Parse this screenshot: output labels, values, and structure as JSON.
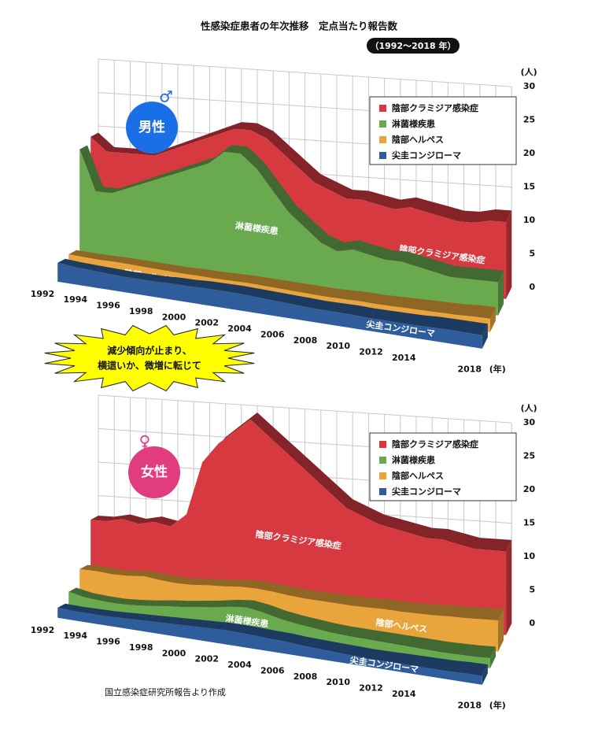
{
  "title": "性感染症患者の年次推移　定点当たり報告数",
  "subtitle": "（1992〜2018 年）",
  "annotation": [
    "減少傾向が止まり、",
    "横這いか、微増に転じて"
  ],
  "source": "国立感染症研究所報告より作成",
  "chart_data": [
    {
      "type": "area3d",
      "title": "男性",
      "y_unit": "(人)",
      "x_unit": "(年)",
      "categories": [
        "1992",
        null,
        "1994",
        null,
        "1996",
        null,
        "1998",
        null,
        "2000",
        null,
        "2002",
        null,
        "2004",
        null,
        "2006",
        null,
        "2008",
        null,
        "2010",
        null,
        "2012",
        null,
        "2014",
        null,
        null,
        null,
        "2018"
      ],
      "ylim": [
        0,
        30
      ],
      "yticks": [
        0,
        5,
        10,
        15,
        20,
        25,
        30
      ],
      "grid": true,
      "legend": "upper right",
      "series": [
        {
          "name": "陰部クラミジア感染症",
          "color": "#d63a40",
          "values": [
            19,
            17,
            17,
            17,
            17,
            18,
            19,
            20,
            21,
            22,
            22,
            21,
            19,
            17,
            15,
            14,
            13,
            13,
            12.5,
            12,
            12.5,
            12,
            11.5,
            11,
            11,
            11.5,
            11.5
          ]
        },
        {
          "name": "淋菌様疾患",
          "color": "#6aaa4f",
          "values": [
            18,
            12,
            12,
            13,
            14,
            15,
            16,
            17,
            18,
            20,
            20,
            18,
            15,
            12,
            10,
            8,
            7,
            7.5,
            7,
            6.5,
            6.5,
            6,
            5.5,
            5,
            5,
            5,
            5
          ]
        },
        {
          "name": "陰部ヘルペス",
          "color": "#e9a53c",
          "values": [
            3.2,
            3.1,
            3,
            3,
            2.9,
            2.8,
            2.7,
            2.6,
            2.6,
            2.5,
            2.5,
            2.5,
            2.4,
            2.3,
            2.2,
            2.1,
            2,
            2,
            2,
            1.9,
            1.9,
            1.9,
            1.9,
            1.9,
            1.9,
            2,
            2
          ]
        },
        {
          "name": "尖圭コンジローマ",
          "color": "#2f5d9c",
          "values": [
            2.8,
            2.6,
            2.5,
            2.4,
            2.3,
            2.3,
            2.3,
            2.4,
            2.4,
            2.5,
            2.5,
            2.5,
            2.4,
            2.3,
            2.2,
            2.1,
            2,
            2,
            2,
            1.9,
            1.9,
            1.9,
            1.9,
            2,
            2,
            2,
            2
          ]
        }
      ]
    },
    {
      "type": "area3d",
      "title": "女性",
      "y_unit": "(人)",
      "x_unit": "(年)",
      "categories": [
        "1992",
        null,
        "1994",
        null,
        "1996",
        null,
        "1998",
        null,
        "2000",
        null,
        "2002",
        null,
        "2004",
        null,
        "2006",
        null,
        "2008",
        null,
        "2010",
        null,
        "2012",
        null,
        "2014",
        null,
        null,
        null,
        "2018"
      ],
      "ylim": [
        0,
        30
      ],
      "yticks": [
        0,
        5,
        10,
        15,
        20,
        25,
        30
      ],
      "grid": true,
      "legend": "upper right",
      "series": [
        {
          "name": "陰部クラミジア感染症",
          "color": "#d63a40",
          "values": [
            12,
            12,
            12.5,
            12,
            12.5,
            12,
            14,
            22,
            25,
            27,
            29,
            27,
            25,
            23,
            21,
            19,
            17,
            16,
            15,
            14.5,
            14,
            13.5,
            13.5,
            13,
            12.5,
            12.5,
            12.5
          ]
        },
        {
          "name": "淋菌様疾患",
          "color": "#6aaa4f",
          "values": [
            3,
            2.5,
            2.3,
            2.2,
            2.3,
            2.5,
            2.8,
            3,
            3.3,
            3.6,
            4,
            4.2,
            3.8,
            3.2,
            2.8,
            2.5,
            2.2,
            2,
            1.9,
            1.8,
            1.7,
            1.6,
            1.5,
            1.4,
            1.4,
            1.4,
            1.5
          ]
        },
        {
          "name": "陰部ヘルペス",
          "color": "#e9a53c",
          "values": [
            5.5,
            5.5,
            5.3,
            5.3,
            5.5,
            5.2,
            5,
            5,
            5.2,
            5.3,
            5.5,
            5.5,
            5.3,
            5,
            4.8,
            4.7,
            4.6,
            4.5,
            4.5,
            4.5,
            4.4,
            4.4,
            4.4,
            4.5,
            4.5,
            4.6,
            4.7
          ]
        },
        {
          "name": "尖圭コンジローマ",
          "color": "#2f5d9c",
          "values": [
            1.5,
            1.4,
            1.4,
            1.4,
            1.5,
            1.6,
            1.7,
            1.8,
            1.9,
            2,
            2.1,
            2.1,
            2,
            1.9,
            1.8,
            1.6,
            1.5,
            1.4,
            1.3,
            1.2,
            1.2,
            1.2,
            1.2,
            1.2,
            1.2,
            1.3,
            1.3
          ]
        }
      ]
    }
  ]
}
